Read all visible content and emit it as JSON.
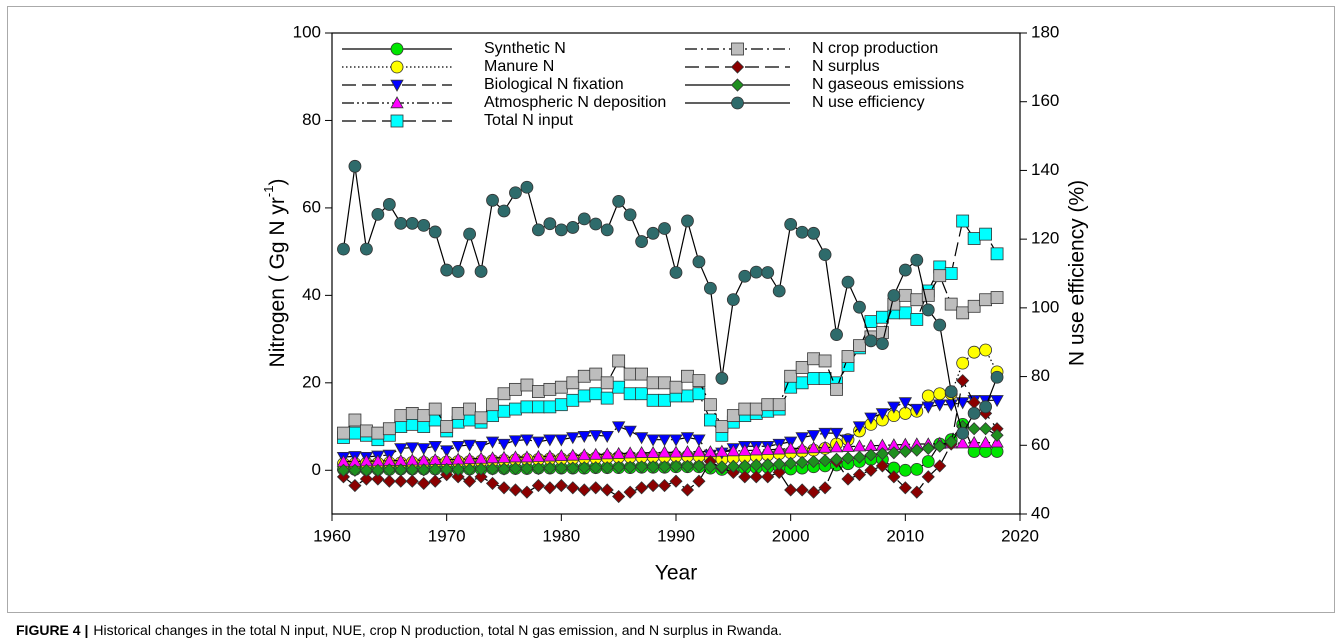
{
  "chart_data": {
    "type": "line",
    "x_label": "Year",
    "y_label_parts": [
      "Nitrogen ( Gg N yr",
      "-1",
      ")"
    ],
    "y2_label": "N use efficiency (%)",
    "caption_label": "FIGURE 4 |",
    "caption_text": "Historical changes in the total N input, NUE, crop N production, total N gas emission, and N surplus in Rwanda.",
    "xlim": [
      1960,
      2020
    ],
    "xticks": [
      1960,
      1970,
      1980,
      1990,
      2000,
      2010,
      2020
    ],
    "ylim": [
      -10,
      100
    ],
    "yticks": [
      0,
      20,
      40,
      60,
      80,
      100
    ],
    "y2lim": [
      40,
      180
    ],
    "y2ticks": [
      40,
      60,
      80,
      100,
      120,
      140,
      160,
      180
    ],
    "x": [
      1961,
      1962,
      1963,
      1964,
      1965,
      1966,
      1967,
      1968,
      1969,
      1970,
      1971,
      1972,
      1973,
      1974,
      1975,
      1976,
      1977,
      1978,
      1979,
      1980,
      1981,
      1982,
      1983,
      1984,
      1985,
      1986,
      1987,
      1988,
      1989,
      1990,
      1991,
      1992,
      1993,
      1994,
      1995,
      1996,
      1997,
      1998,
      1999,
      2000,
      2001,
      2002,
      2003,
      2004,
      2005,
      2006,
      2007,
      2008,
      2009,
      2010,
      2011,
      2012,
      2013,
      2014,
      2015,
      2016,
      2017,
      2018
    ],
    "series": [
      {
        "name": "Synthetic N",
        "color": "#00e600",
        "marker": "circle",
        "line_style": "solid",
        "values": [
          0.2,
          0.2,
          0.2,
          0.2,
          0.2,
          0.3,
          0.3,
          0.3,
          0.3,
          0.3,
          0.3,
          0.3,
          0.3,
          0.4,
          0.4,
          0.4,
          0.4,
          0.5,
          0.5,
          0.5,
          0.5,
          0.5,
          0.6,
          0.6,
          0.6,
          0.6,
          0.7,
          0.7,
          0.7,
          0.8,
          0.8,
          0.8,
          0.5,
          0.2,
          0.3,
          0.5,
          0.6,
          0.7,
          0.8,
          0.3,
          0.5,
          0.8,
          1,
          1.2,
          1.5,
          2,
          2.5,
          2.5,
          0.5,
          0,
          0.2,
          2,
          6,
          7,
          10.5,
          4.3,
          4.3,
          4.3
        ]
      },
      {
        "name": "Manure N",
        "color": "#ffff00",
        "marker": "circle",
        "line_style": "dotted",
        "values": [
          1.5,
          1.5,
          1.6,
          1.6,
          1.7,
          1.7,
          1.8,
          1.8,
          1.9,
          1.9,
          2,
          2,
          2.1,
          2.2,
          2.3,
          2.4,
          2.5,
          2.5,
          2.6,
          2.6,
          2.7,
          2.8,
          2.8,
          2.9,
          3,
          3,
          3,
          3.1,
          3.1,
          3.2,
          3.2,
          3.2,
          2.8,
          2.5,
          2.8,
          3,
          3.2,
          3.5,
          3.8,
          4,
          4.3,
          4.6,
          5,
          6,
          7,
          9,
          10.5,
          11.5,
          12.5,
          13,
          13.5,
          17,
          17.5,
          17.5,
          24.5,
          27,
          27.5,
          22.5
        ]
      },
      {
        "name": "Biological N fixation",
        "color": "#0000ff",
        "marker": "triangle-down",
        "line_style": "dashed",
        "values": [
          3,
          3.2,
          3,
          3.3,
          3.5,
          5,
          5.2,
          5,
          5.5,
          4.5,
          5.5,
          5.8,
          5.5,
          6.5,
          6,
          6.8,
          7,
          6.5,
          7,
          7,
          7.5,
          7.8,
          8,
          7.8,
          10,
          9,
          7.5,
          7,
          7,
          7,
          7.5,
          7,
          3.5,
          4,
          5,
          5.5,
          5.5,
          5.5,
          6,
          6.5,
          7.5,
          8,
          8.5,
          8.5,
          7,
          10,
          12,
          13,
          14.5,
          15.5,
          14,
          14.5,
          15,
          15,
          15.5,
          16,
          16,
          16
        ]
      },
      {
        "name": "Atmospheric N deposition",
        "color": "#ff00ff",
        "marker": "triangle-up",
        "line_style": "dash-dot-dot",
        "values": [
          2,
          2,
          2.1,
          2.1,
          2.2,
          2.2,
          2.3,
          2.3,
          2.4,
          2.4,
          2.5,
          2.6,
          2.7,
          2.8,
          2.9,
          3,
          3,
          3.1,
          3.2,
          3.3,
          3.4,
          3.5,
          3.6,
          3.7,
          3.8,
          3.9,
          4,
          4,
          4.1,
          4.1,
          4.2,
          4.3,
          4.2,
          4.3,
          4.4,
          4.5,
          4.6,
          4.7,
          4.8,
          5,
          5,
          5.1,
          5.2,
          5.3,
          5.4,
          5.5,
          5.6,
          5.7,
          5.8,
          5.9,
          6,
          6,
          6.1,
          6.2,
          6.2,
          6.3,
          6.3,
          6.4
        ]
      },
      {
        "name": "Total N input",
        "color": "#00ffff",
        "marker": "square",
        "line_style": "dashed",
        "values": [
          7.5,
          8.5,
          8,
          7,
          8,
          10,
          10.5,
          10,
          11.5,
          9,
          11,
          11.5,
          11,
          12.5,
          13.5,
          14,
          14.5,
          14.5,
          14.5,
          15,
          16,
          17,
          17.5,
          16.5,
          19,
          17.5,
          17.5,
          16,
          16,
          17,
          17,
          17.5,
          11.5,
          8,
          11,
          12.5,
          13,
          13.5,
          14,
          19,
          20,
          21,
          21,
          20,
          24,
          28,
          34,
          35,
          36,
          36,
          34.5,
          41,
          46.5,
          45,
          57,
          53,
          54,
          49.5
        ]
      },
      {
        "name": "N crop production",
        "color": "#bdbdbd",
        "marker": "square",
        "line_style": "dash-dot",
        "values": [
          8.5,
          11.5,
          9,
          8.5,
          9.5,
          12.5,
          13,
          12.5,
          14,
          10,
          13,
          14,
          12,
          15,
          17.5,
          18.5,
          19.5,
          18,
          18.5,
          19,
          20,
          21.5,
          22,
          20,
          25,
          22,
          22,
          20,
          20,
          19,
          21.5,
          20.5,
          15,
          10,
          12.5,
          14,
          14,
          15,
          15,
          21.5,
          23.5,
          25.5,
          25,
          18.5,
          26,
          28.5,
          30.5,
          31.5,
          38,
          40,
          39,
          40,
          44.5,
          38,
          36,
          37.5,
          39,
          39.5
        ]
      },
      {
        "name": "N surplus",
        "color": "#8b0000",
        "marker": "diamond",
        "line_style": "dashed",
        "values": [
          -1.5,
          -3.5,
          -2,
          -2,
          -2.5,
          -2.5,
          -2.5,
          -3,
          -2.5,
          -1,
          -1.5,
          -2.5,
          -1.5,
          -3,
          -4,
          -4.5,
          -5,
          -3.5,
          -4,
          -3.5,
          -4,
          -4.5,
          -4,
          -4.5,
          -6,
          -5,
          -4,
          -3.5,
          -3.5,
          -2.5,
          -4.5,
          -2.5,
          2,
          0.5,
          -0.5,
          -1.5,
          -1.5,
          -1.5,
          -0.5,
          -4.5,
          -4.5,
          -5,
          -4,
          2,
          -2,
          -1,
          0,
          1,
          -1.5,
          -4,
          -5,
          -1.5,
          1,
          6,
          20.5,
          15.5,
          13,
          9.5
        ]
      },
      {
        "name": "N gaseous emissions",
        "color": "#1f8f1f",
        "marker": "diamond",
        "line_style": "solid",
        "values": [
          0,
          0,
          0,
          0,
          0.1,
          0.1,
          0.1,
          0.1,
          0.2,
          0.2,
          0.2,
          0.2,
          0.3,
          0.3,
          0.3,
          0.4,
          0.4,
          0.4,
          0.5,
          0.5,
          0.5,
          0.6,
          0.6,
          0.6,
          0.7,
          0.7,
          0.8,
          0.8,
          0.8,
          0.9,
          0.9,
          1,
          0.8,
          0.8,
          0.9,
          1,
          1.2,
          1.3,
          1.4,
          1.6,
          1.8,
          2,
          2.2,
          2.5,
          2.8,
          3,
          3.5,
          3.8,
          4,
          4.3,
          4.6,
          5,
          5.5,
          6.5,
          10,
          9.5,
          9.5,
          8
        ]
      },
      {
        "name": "N use efficiency",
        "color": "#2e6b6b",
        "marker": "circle",
        "line_style": "solid",
        "axis": "y2",
        "values": [
          117.1,
          141.2,
          117.1,
          127.2,
          130.1,
          124.6,
          124.6,
          124.0,
          122.1,
          111.0,
          110.6,
          121.5,
          110.6,
          131.3,
          128.2,
          133.5,
          135.1,
          122.7,
          124.5,
          122.7,
          123.4,
          125.9,
          124.4,
          122.7,
          131.0,
          127.1,
          119.3,
          121.7,
          123.1,
          110.3,
          125.3,
          113.4,
          105.7,
          79.5,
          102.4,
          109.2,
          110.4,
          110.3,
          104.9,
          124.3,
          122.0,
          121.7,
          115.5,
          92.2,
          107.5,
          100.2,
          90.4,
          89.6,
          103.6,
          111.0,
          113.9,
          99.4,
          95.0,
          75.6,
          63.5,
          69.3,
          71.2,
          79.8
        ]
      }
    ]
  }
}
